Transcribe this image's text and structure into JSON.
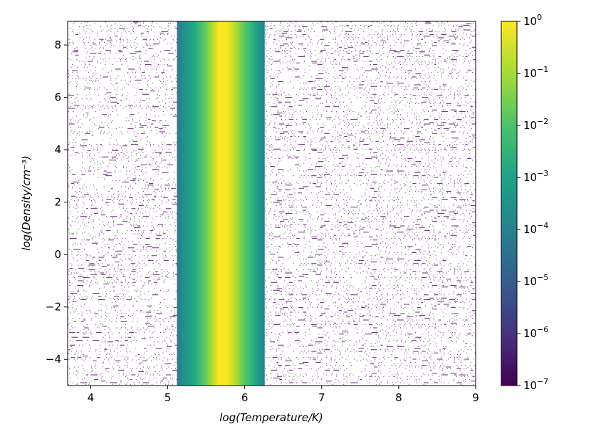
{
  "chart_data": {
    "type": "heatmap",
    "xlabel": "log(Temperature/K)",
    "ylabel": "log(Density/cm⁻³)",
    "xlim": [
      3.7,
      9.0
    ],
    "ylim": [
      -5.0,
      8.9
    ],
    "x_ticks": [
      "4",
      "5",
      "6",
      "7",
      "8",
      "9"
    ],
    "x_tick_values": [
      4,
      5,
      6,
      7,
      8,
      9
    ],
    "y_ticks": [
      "−4",
      "−2",
      "0",
      "2",
      "4",
      "6",
      "8"
    ],
    "y_tick_values": [
      -4,
      -2,
      0,
      2,
      4,
      6,
      8
    ],
    "colorbar": {
      "colormap": "viridis",
      "scale": "log",
      "range": [
        1e-07,
        1
      ],
      "tick_values": [
        1e-07,
        1e-06,
        1e-05,
        0.0001,
        0.001,
        0.01,
        0.1,
        1
      ],
      "tick_exponents": [
        "−7",
        "−6",
        "−5",
        "−4",
        "−3",
        "−2",
        "−1",
        "0"
      ],
      "tick_base": "10"
    },
    "band": {
      "x_start": 5.12,
      "x_end": 6.26,
      "peak_x": 5.65,
      "peak_value": 1.0,
      "edge_value": 0.0003,
      "description_colors": [
        "#2a788e",
        "#22a884",
        "#7ad151",
        "#fde725"
      ]
    },
    "background": {
      "x_ranges": [
        [
          3.7,
          5.12
        ],
        [
          6.26,
          9.0
        ]
      ],
      "value_floor": 1e-07,
      "color": "#440154"
    },
    "grid": false
  }
}
